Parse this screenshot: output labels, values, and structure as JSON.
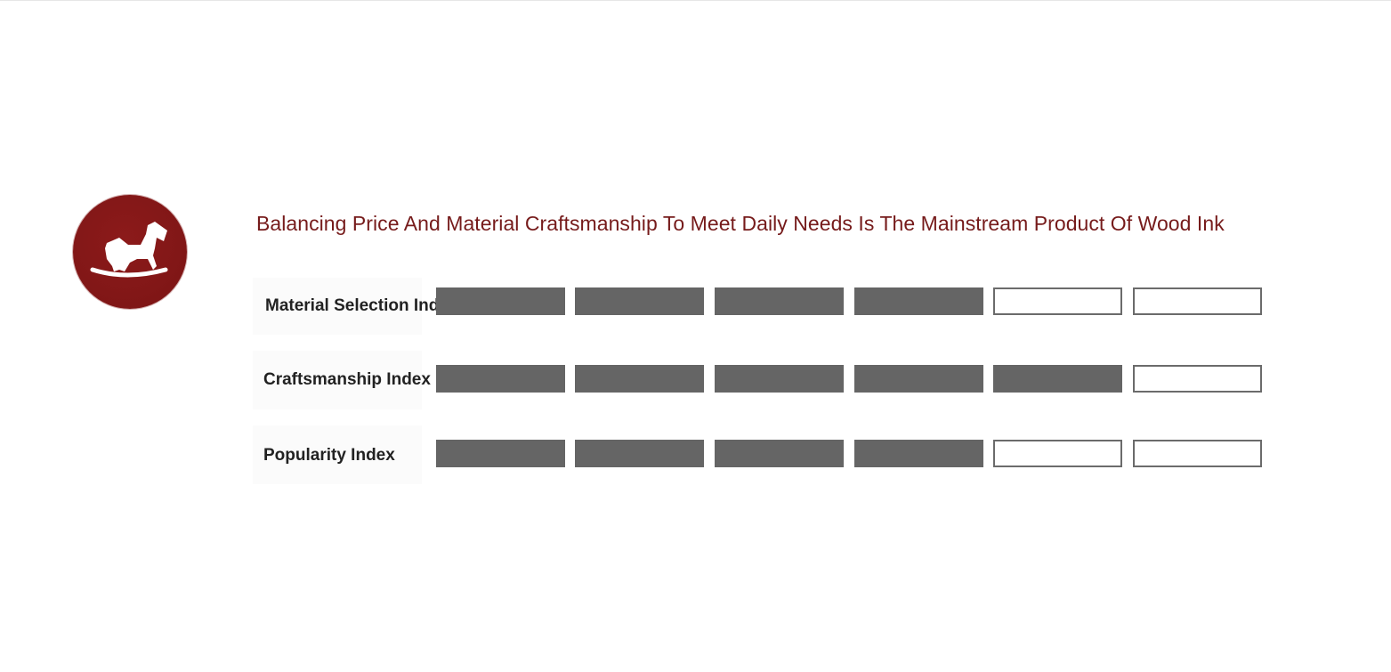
{
  "title": "Balancing Price And Material Craftsmanship To Meet Daily Needs Is The Mainstream Product Of Wood Ink",
  "logo": {
    "icon": "rocking-horse-icon",
    "color": "#821717"
  },
  "rows": [
    {
      "label": "Material Selection Index",
      "score": 4,
      "max": 6
    },
    {
      "label": "Craftsmanship Index",
      "score": 5,
      "max": 6
    },
    {
      "label": "Popularity Index",
      "score": 4,
      "max": 6
    }
  ],
  "colors": {
    "title": "#761b1b",
    "filled": "#656565",
    "empty_border": "#6b6b6b",
    "label": "#222222"
  }
}
